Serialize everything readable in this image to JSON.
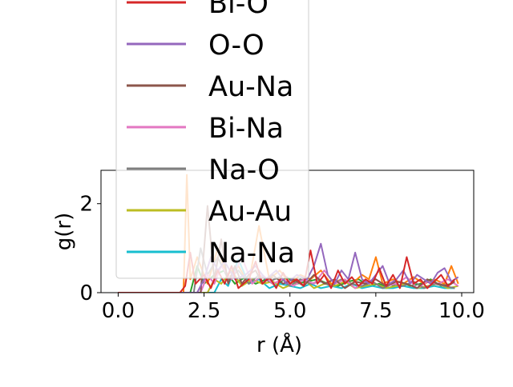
{
  "chart_data": {
    "type": "line",
    "xlabel": "r (Å)",
    "ylabel": "g(r)",
    "xlim": [
      -0.5,
      10.35
    ],
    "ylim": [
      0,
      2.75
    ],
    "x_ticks": [
      0.0,
      2.5,
      5.0,
      7.5,
      10.0
    ],
    "x_tick_labels": [
      "0.0",
      "2.5",
      "5.0",
      "7.5",
      "10.0"
    ],
    "y_ticks": [
      0,
      2
    ],
    "y_tick_labels": [
      "0",
      "2"
    ],
    "legend_position": "upper center, extending above the axes",
    "series": [
      {
        "name": "Bi-O",
        "color": "#d62728",
        "x": [
          0.0,
          1.8,
          1.95,
          2.1,
          2.25,
          2.5,
          2.7,
          2.9,
          3.1,
          3.3,
          3.5,
          3.8,
          4.0,
          4.2,
          4.4,
          4.6,
          4.8,
          5.0,
          5.2,
          5.4,
          5.6,
          5.8,
          6.0,
          6.2,
          6.4,
          6.6,
          6.8,
          7.0,
          7.2,
          7.4,
          7.6,
          7.8,
          8.0,
          8.2,
          8.4,
          8.6,
          8.8,
          9.0,
          9.2,
          9.4,
          9.6,
          9.8
        ],
        "y": [
          0.0,
          0.0,
          0.15,
          0.9,
          0.2,
          0.4,
          0.1,
          0.5,
          0.2,
          0.6,
          0.1,
          0.3,
          0.7,
          0.2,
          0.35,
          0.1,
          0.45,
          0.2,
          0.3,
          0.15,
          0.95,
          0.2,
          0.4,
          0.1,
          0.5,
          0.2,
          0.35,
          0.15,
          0.3,
          0.2,
          0.55,
          0.15,
          0.4,
          0.1,
          0.8,
          0.2,
          0.3,
          0.1,
          0.25,
          0.4,
          0.15,
          0.3
        ]
      },
      {
        "name": "O-O",
        "color": "#9467bd",
        "x": [
          0.0,
          2.3,
          2.5,
          2.7,
          2.9,
          3.1,
          3.4,
          3.7,
          4.0,
          4.3,
          4.6,
          4.9,
          5.2,
          5.5,
          5.7,
          5.9,
          6.1,
          6.3,
          6.5,
          6.7,
          6.9,
          7.1,
          7.3,
          7.5,
          7.7,
          7.9,
          8.1,
          8.3,
          8.5,
          8.7,
          8.9,
          9.1,
          9.3,
          9.5,
          9.7,
          9.9
        ],
        "y": [
          0.0,
          0.0,
          0.3,
          0.8,
          0.5,
          0.7,
          0.3,
          0.4,
          0.6,
          0.3,
          0.5,
          0.2,
          0.4,
          0.3,
          0.6,
          1.1,
          0.4,
          0.2,
          0.5,
          0.3,
          0.9,
          0.3,
          0.2,
          0.4,
          0.6,
          0.2,
          0.3,
          0.5,
          0.2,
          0.4,
          0.3,
          0.2,
          0.45,
          0.55,
          0.25,
          0.35
        ]
      },
      {
        "name": "Au-Na",
        "color": "#8c564b",
        "x": [
          0.0,
          2.4,
          2.6,
          2.8,
          3.0,
          3.2,
          3.4,
          3.6,
          3.8,
          4.0,
          4.2,
          4.5,
          4.8,
          5.1,
          5.4,
          5.7,
          6.0,
          6.3,
          6.6,
          6.9,
          7.2,
          7.5,
          7.8,
          8.1,
          8.4,
          8.7,
          9.0,
          9.3,
          9.6,
          9.8
        ],
        "y": [
          0.0,
          0.0,
          1.95,
          0.3,
          1.2,
          0.2,
          0.6,
          0.2,
          0.4,
          0.5,
          0.2,
          0.4,
          0.2,
          0.3,
          0.15,
          0.4,
          0.2,
          0.3,
          0.1,
          0.25,
          0.2,
          0.3,
          0.15,
          0.25,
          0.2,
          0.1,
          0.3,
          0.2,
          0.15,
          0.25
        ]
      },
      {
        "name": "Bi-Na",
        "color": "#e377c2",
        "x": [
          0.0,
          2.4,
          2.6,
          2.8,
          3.0,
          3.3,
          3.6,
          3.9,
          4.2,
          4.5,
          4.8,
          5.1,
          5.4,
          5.7,
          6.0,
          6.3,
          6.6,
          6.9,
          7.2,
          7.5,
          7.8,
          8.1,
          8.4,
          8.7,
          9.0,
          9.3,
          9.6,
          9.9
        ],
        "y": [
          0.0,
          0.0,
          0.4,
          0.2,
          0.6,
          0.3,
          0.8,
          0.2,
          0.4,
          0.2,
          0.3,
          0.15,
          0.3,
          0.2,
          0.5,
          0.2,
          0.3,
          0.1,
          0.25,
          0.3,
          0.15,
          0.2,
          0.35,
          0.1,
          0.25,
          0.2,
          0.3,
          0.15
        ]
      },
      {
        "name": "Na-O",
        "color": "#7f7f7f",
        "x": [
          0.0,
          2.2,
          2.4,
          2.6,
          2.9,
          3.2,
          3.5,
          3.8,
          4.1,
          4.4,
          4.7,
          5.0,
          5.3,
          5.6,
          5.9,
          6.2,
          6.5,
          6.8,
          7.1,
          7.4,
          7.7,
          8.0,
          8.3,
          8.6,
          8.9,
          9.2,
          9.5,
          9.8
        ],
        "y": [
          0.0,
          0.0,
          1.0,
          0.4,
          0.8,
          0.3,
          0.5,
          0.2,
          0.4,
          0.25,
          0.35,
          0.15,
          0.3,
          0.2,
          0.25,
          0.15,
          0.3,
          0.2,
          0.15,
          0.25,
          0.1,
          0.2,
          0.15,
          0.25,
          0.1,
          0.2,
          0.15,
          0.1
        ]
      },
      {
        "name": "Au-Au",
        "color": "#bcbd22",
        "x": [
          0.0,
          2.6,
          2.8,
          3.0,
          3.3,
          3.6,
          3.9,
          4.2,
          4.5,
          4.8,
          5.1,
          5.4,
          5.7,
          6.0,
          6.3,
          6.6,
          6.9,
          7.2,
          7.5,
          7.8,
          8.1,
          8.4,
          8.7,
          9.0,
          9.3,
          9.6,
          9.9
        ],
        "y": [
          0.0,
          0.0,
          0.3,
          0.2,
          0.5,
          0.15,
          0.3,
          0.2,
          0.25,
          0.1,
          0.2,
          0.3,
          0.1,
          0.2,
          0.15,
          0.25,
          0.1,
          0.15,
          0.2,
          0.1,
          0.15,
          0.2,
          0.1,
          0.15,
          0.2,
          0.1,
          0.15
        ]
      },
      {
        "name": "Na-Na",
        "color": "#17becf",
        "x": [
          0.0,
          2.8,
          3.0,
          3.2,
          3.5,
          3.8,
          4.1,
          4.4,
          4.7,
          5.0,
          5.3,
          5.6,
          5.9,
          6.2,
          6.5,
          6.8,
          7.1,
          7.4,
          7.7,
          8.0,
          8.3,
          8.6,
          8.9,
          9.2,
          9.5,
          9.8
        ],
        "y": [
          0.0,
          0.0,
          0.3,
          0.15,
          0.75,
          0.2,
          0.3,
          0.1,
          0.2,
          0.15,
          0.1,
          0.2,
          0.1,
          0.15,
          0.1,
          0.2,
          0.1,
          0.15,
          0.1,
          0.1,
          0.15,
          0.1,
          0.1,
          0.15,
          0.1,
          0.1
        ]
      },
      {
        "name": "",
        "color": "#ff7f0e",
        "x": [
          0.0,
          1.9,
          2.0,
          2.1,
          2.3,
          2.6,
          2.9,
          3.2,
          3.5,
          3.8,
          4.1,
          4.4,
          4.7,
          5.0,
          5.3,
          5.6,
          5.9,
          6.2,
          6.5,
          6.8,
          7.1,
          7.3,
          7.5,
          7.7,
          8.0,
          8.3,
          8.6,
          8.9,
          9.2,
          9.5,
          9.7,
          9.9
        ],
        "y": [
          0.0,
          0.0,
          2.65,
          0.3,
          0.8,
          0.2,
          1.0,
          0.3,
          0.6,
          0.2,
          1.5,
          0.3,
          0.5,
          0.2,
          0.4,
          0.3,
          0.5,
          0.2,
          0.3,
          0.2,
          0.4,
          0.3,
          0.8,
          0.2,
          0.3,
          0.2,
          0.35,
          0.2,
          0.3,
          0.2,
          0.6,
          0.2
        ]
      },
      {
        "name": "",
        "color": "#2ca02c",
        "x": [
          0.0,
          2.1,
          2.3,
          2.5,
          2.8,
          3.1,
          3.4,
          3.7,
          4.0,
          4.3,
          4.6,
          4.9,
          5.2,
          5.5,
          5.8,
          6.1,
          6.4,
          6.7,
          7.0,
          7.3,
          7.6,
          7.9,
          8.2,
          8.5,
          8.8,
          9.1,
          9.4,
          9.7
        ],
        "y": [
          0.0,
          0.0,
          0.6,
          0.2,
          0.4,
          0.5,
          0.2,
          0.35,
          0.2,
          0.3,
          0.15,
          0.35,
          0.2,
          0.25,
          0.3,
          0.2,
          0.15,
          0.25,
          0.3,
          0.15,
          0.2,
          0.1,
          0.25,
          0.15,
          0.2,
          0.3,
          0.15,
          0.2
        ]
      }
    ],
    "legend": {
      "items": [
        {
          "label": "Bi-O",
          "color": "#d62728"
        },
        {
          "label": "O-O",
          "color": "#9467bd"
        },
        {
          "label": "Au-Na",
          "color": "#8c564b"
        },
        {
          "label": "Bi-Na",
          "color": "#e377c2"
        },
        {
          "label": "Na-O",
          "color": "#7f7f7f"
        },
        {
          "label": "Au-Au",
          "color": "#bcbd22"
        },
        {
          "label": "Na-Na",
          "color": "#17becf"
        }
      ]
    }
  }
}
